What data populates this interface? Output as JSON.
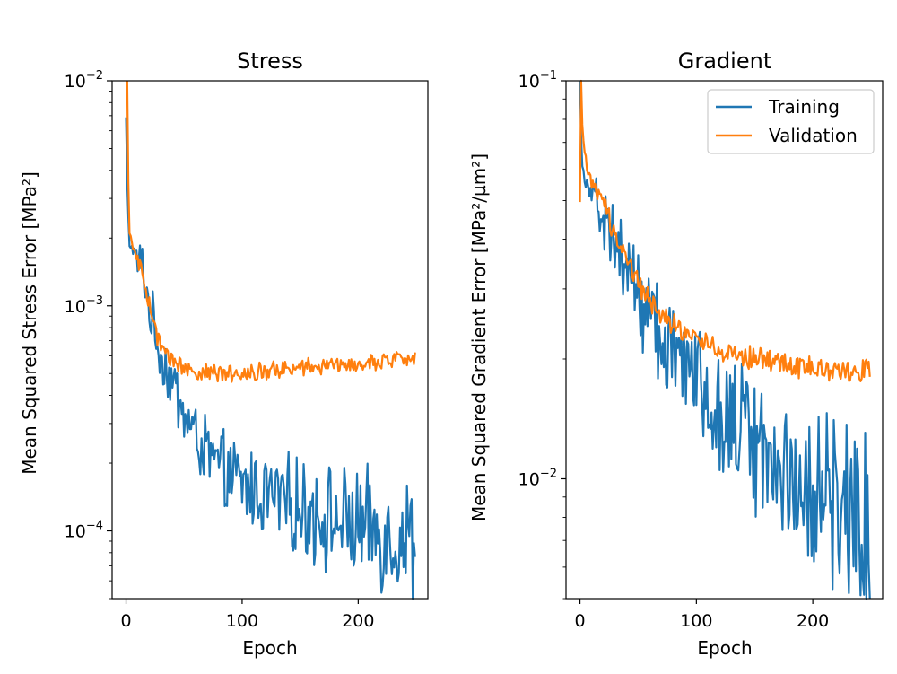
{
  "colors": {
    "training": "#1f77b4",
    "validation": "#ff7f0e"
  },
  "chart_data": [
    {
      "type": "line",
      "title": "Stress",
      "xlabel": "Epoch",
      "ylabel": "Mean Squared Stress Error [MPa²]",
      "yscale": "log",
      "xlim": [
        -12,
        260
      ],
      "ylim": [
        5e-05,
        0.01
      ],
      "xticks": [
        0,
        100,
        200
      ],
      "yticks": [
        {
          "base": "10",
          "exp": "−2"
        },
        {
          "base": "10",
          "exp": "−3"
        },
        {
          "base": "10",
          "exp": "−4"
        }
      ],
      "series": [
        {
          "name": "Training",
          "x": [
            0,
            1,
            2,
            3,
            5,
            8,
            10,
            15,
            20,
            25,
            30,
            40,
            50,
            60,
            70,
            80,
            100,
            120,
            140,
            160,
            180,
            200,
            220,
            240,
            249
          ],
          "y": [
            0.0068,
            0.0035,
            0.0024,
            0.0019,
            0.0018,
            0.00172,
            0.00165,
            0.0014,
            0.00098,
            0.00075,
            0.00061,
            0.00045,
            0.00033,
            0.00026,
            0.00022,
            0.00019,
            0.00016,
            0.000145,
            0.000132,
            0.000122,
            0.000112,
            0.000104,
            9.8e-05,
            9.3e-05,
            8.8e-05
          ]
        },
        {
          "name": "Validation",
          "x": [
            1,
            2,
            3,
            5,
            8,
            10,
            15,
            20,
            25,
            30,
            40,
            50,
            60,
            70,
            80,
            100,
            120,
            140,
            160,
            180,
            200,
            220,
            240,
            249
          ],
          "y": [
            0.0098,
            0.0035,
            0.0022,
            0.00185,
            0.0017,
            0.0016,
            0.0013,
            0.001,
            0.00078,
            0.00066,
            0.00057,
            0.00053,
            0.000515,
            0.0005,
            0.0005,
            0.000505,
            0.000515,
            0.000525,
            0.000535,
            0.000545,
            0.000555,
            0.000565,
            0.00058,
            0.00059
          ]
        }
      ]
    },
    {
      "type": "line",
      "title": "Gradient",
      "xlabel": "Epoch",
      "ylabel": "Mean Squared Gradient Error [MPa²/µm²]",
      "yscale": "log",
      "xlim": [
        -12,
        260
      ],
      "ylim": [
        0.005,
        0.1
      ],
      "xticks": [
        0,
        100,
        200
      ],
      "yticks": [
        {
          "base": "10",
          "exp": "−1"
        },
        {
          "base": "10",
          "exp": "−2"
        }
      ],
      "legend": {
        "position": "top-right",
        "entries": [
          "Training",
          "Validation"
        ]
      },
      "series": [
        {
          "name": "Training",
          "x": [
            0,
            1,
            2,
            4,
            6,
            10,
            15,
            20,
            30,
            40,
            50,
            60,
            70,
            80,
            100,
            120,
            140,
            160,
            180,
            200,
            220,
            240,
            249
          ],
          "y": [
            0.098,
            0.075,
            0.062,
            0.058,
            0.055,
            0.052,
            0.05,
            0.046,
            0.039,
            0.034,
            0.029,
            0.026,
            0.023,
            0.021,
            0.0175,
            0.0152,
            0.0132,
            0.0117,
            0.0104,
            0.0093,
            0.0086,
            0.0079,
            0.0075
          ]
        },
        {
          "name": "Validation",
          "x": [
            0,
            1,
            2,
            4,
            6,
            10,
            15,
            20,
            30,
            40,
            50,
            60,
            70,
            80,
            100,
            120,
            140,
            160,
            180,
            200,
            220,
            240,
            249
          ],
          "y": [
            0.048,
            0.1,
            0.075,
            0.065,
            0.06,
            0.055,
            0.052,
            0.048,
            0.042,
            0.036,
            0.031,
            0.028,
            0.026,
            0.0245,
            0.0226,
            0.0212,
            0.0203,
            0.0198,
            0.0193,
            0.0189,
            0.0187,
            0.0187,
            0.0188
          ]
        }
      ]
    }
  ]
}
